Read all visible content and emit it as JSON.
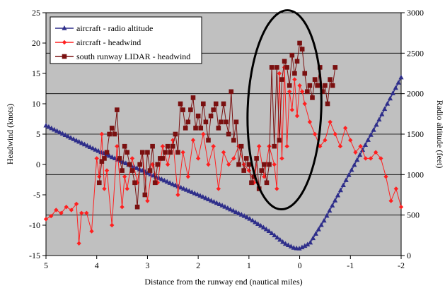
{
  "chart_data": {
    "type": "line",
    "title": "",
    "xlabel": "Distance from the runway end (nautical miles)",
    "ylabel": "Headwind (knots)",
    "y2label": "Radio altitude (feet)",
    "xlim": [
      5,
      -2
    ],
    "xreversed": true,
    "xticks": [
      5,
      4,
      3,
      2,
      1,
      0,
      -1,
      -2
    ],
    "ylim": [
      -15,
      25
    ],
    "yticks": [
      -15,
      -10,
      -5,
      0,
      5,
      10,
      15,
      20,
      25
    ],
    "y2lim": [
      0,
      3000
    ],
    "y2ticks": [
      0,
      500,
      1000,
      1500,
      2000,
      2500,
      3000
    ],
    "grid": true,
    "legend_position": "top-left",
    "plot_background": "#c0c0c0",
    "annotation": "ellipse highlighting the region between about 1 and -0.4 nautical miles",
    "series": [
      {
        "name": "aircraft - radio altitude",
        "axis": "right",
        "color": "#2e2e8a",
        "marker": "triangle",
        "x": [
          5,
          4.5,
          4,
          3.5,
          3,
          2.5,
          2,
          1.5,
          1,
          0.6,
          0.3,
          0.1,
          0,
          -0.2,
          -0.5,
          -1,
          -1.5,
          -2
        ],
        "y": [
          1605,
          1450,
          1300,
          1160,
          1020,
          880,
          750,
          610,
          460,
          300,
          150,
          90,
          85,
          150,
          450,
          1030,
          1600,
          2200
        ]
      },
      {
        "name": "aircraft - headwind",
        "axis": "left",
        "color": "#ff2020",
        "marker": "diamond",
        "x": [
          5,
          4.9,
          4.8,
          4.7,
          4.6,
          4.5,
          4.4,
          4.35,
          4.3,
          4.2,
          4.1,
          4.0,
          3.95,
          3.9,
          3.85,
          3.8,
          3.7,
          3.6,
          3.5,
          3.45,
          3.4,
          3.3,
          3.2,
          3.1,
          3.0,
          2.9,
          2.8,
          2.7,
          2.6,
          2.5,
          2.4,
          2.3,
          2.2,
          2.1,
          2.0,
          1.9,
          1.8,
          1.7,
          1.6,
          1.5,
          1.4,
          1.3,
          1.2,
          1.1,
          1.0,
          0.9,
          0.8,
          0.7,
          0.6,
          0.5,
          0.45,
          0.4,
          0.35,
          0.3,
          0.25,
          0.2,
          0.15,
          0.1,
          0.05,
          0,
          -0.05,
          -0.1,
          -0.2,
          -0.3,
          -0.4,
          -0.5,
          -0.6,
          -0.7,
          -0.8,
          -0.9,
          -1.0,
          -1.1,
          -1.2,
          -1.3,
          -1.4,
          -1.5,
          -1.6,
          -1.7,
          -1.8,
          -1.9,
          -2.0
        ],
        "y": [
          -9,
          -8.5,
          -7.5,
          -8,
          -7,
          -7.5,
          -6.5,
          -13,
          -8,
          -8,
          -11,
          1,
          -2,
          5,
          -4,
          -1,
          -10,
          3,
          -7,
          -2,
          -4,
          1,
          -3,
          2,
          -6,
          0,
          -3,
          3,
          0,
          4,
          -5,
          2,
          -2,
          4,
          1,
          5,
          0,
          3,
          -4,
          2,
          0,
          1,
          3,
          0,
          -1,
          -3,
          3,
          -2,
          3,
          0,
          -4,
          15,
          1,
          16,
          3,
          12,
          9,
          14,
          8,
          13,
          12,
          10,
          7,
          5,
          3,
          4,
          7,
          5,
          3,
          6,
          4,
          2,
          3,
          1,
          1,
          2,
          1,
          -2,
          -6,
          -4,
          -7
        ]
      },
      {
        "name": "south runway LIDAR - headwind",
        "axis": "left",
        "color": "#7a1010",
        "marker": "square",
        "x": [
          3.95,
          3.9,
          3.85,
          3.8,
          3.75,
          3.7,
          3.65,
          3.6,
          3.55,
          3.5,
          3.45,
          3.4,
          3.35,
          3.3,
          3.25,
          3.2,
          3.15,
          3.1,
          3.05,
          3.0,
          2.95,
          2.9,
          2.85,
          2.8,
          2.75,
          2.7,
          2.65,
          2.6,
          2.55,
          2.5,
          2.45,
          2.4,
          2.35,
          2.3,
          2.25,
          2.2,
          2.15,
          2.1,
          2.05,
          2.0,
          1.95,
          1.9,
          1.85,
          1.8,
          1.75,
          1.7,
          1.65,
          1.6,
          1.55,
          1.5,
          1.45,
          1.4,
          1.35,
          1.3,
          1.25,
          1.2,
          1.15,
          1.1,
          1.05,
          1.0,
          0.95,
          0.9,
          0.85,
          0.8,
          0.75,
          0.7,
          0.65,
          0.6,
          0.55,
          0.5,
          0.45,
          0.4,
          0.35,
          0.3,
          0.25,
          0.2,
          0.15,
          0.1,
          0.05,
          0,
          -0.05,
          -0.1,
          -0.15,
          -0.2,
          -0.25,
          -0.3,
          -0.35,
          -0.4,
          -0.45,
          -0.5,
          -0.55,
          -0.6,
          -0.65,
          -0.7
        ],
        "y": [
          -3,
          0.5,
          1,
          2,
          5,
          6,
          5,
          9,
          1,
          -1,
          3,
          2,
          0,
          -1,
          -3,
          -7,
          0,
          2,
          -5,
          2,
          -1,
          3,
          -3,
          0,
          1,
          1,
          2,
          3,
          2,
          3,
          5,
          2,
          10,
          9,
          6,
          7,
          9,
          11,
          6,
          8,
          6,
          10,
          7,
          4,
          8,
          9,
          10,
          6,
          7,
          10,
          7,
          5,
          12,
          4,
          7,
          0,
          3,
          -1,
          1,
          0,
          -3,
          -2,
          1,
          -4,
          -1,
          0,
          -3,
          0,
          16,
          3,
          16,
          4,
          14,
          17,
          16,
          13,
          18,
          15,
          17,
          20,
          19,
          15,
          12,
          13,
          11,
          14,
          13,
          16,
          12,
          13,
          10,
          14,
          13,
          16
        ]
      }
    ]
  }
}
